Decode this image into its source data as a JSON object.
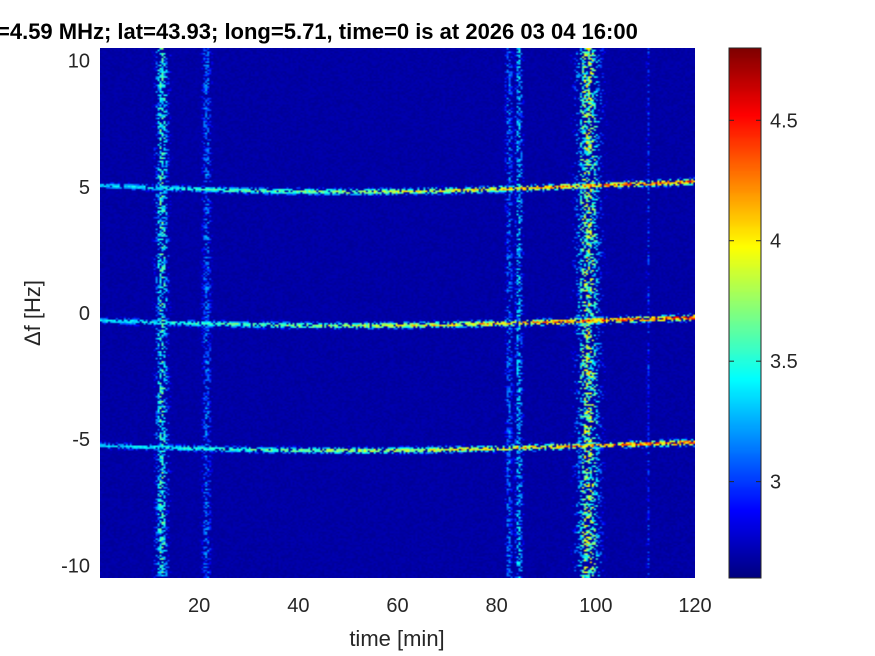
{
  "chart_data": {
    "type": "heatmap",
    "title": "=4.59 MHz;  lat=43.93; long=5.71, time=0 is at 2026 03 04 16:00",
    "xlabel": "time [min]",
    "ylabel": "Δf [Hz]",
    "xlim": [
      0,
      120
    ],
    "ylim": [
      -10.5,
      10.5
    ],
    "x_ticks": [
      "20",
      "40",
      "60",
      "80",
      "100",
      "120"
    ],
    "y_ticks": [
      "10",
      "5",
      "0",
      "-5",
      "-10"
    ],
    "colorbar": {
      "colormap": "jet",
      "range": [
        2.6,
        4.8
      ],
      "ticks": [
        "4.5",
        "4",
        "3.5",
        "3"
      ]
    },
    "background_level": 2.65,
    "horizontal_lines": [
      {
        "df_hz": 5.05,
        "from_min": 0,
        "to_min": 120,
        "peak_level": 4.6,
        "note_drift_hz": -0.25
      },
      {
        "df_hz": -0.3,
        "from_min": 0,
        "to_min": 120,
        "peak_level": 4.7,
        "note_drift_hz": -0.2
      },
      {
        "df_hz": -5.25,
        "from_min": 0,
        "to_min": 120,
        "peak_level": 4.6,
        "note_drift_hz": -0.2
      }
    ],
    "vertical_bands": [
      {
        "time_min": 12.5,
        "width_min": 2.5,
        "level": 3.6
      },
      {
        "time_min": 21.5,
        "width_min": 1.8,
        "level": 3.2
      },
      {
        "time_min": 82.5,
        "width_min": 1.5,
        "level": 3.2
      },
      {
        "time_min": 84.5,
        "width_min": 1.5,
        "level": 3.4
      },
      {
        "time_min": 98.5,
        "width_min": 4.5,
        "level": 3.9
      },
      {
        "time_min": 110.5,
        "width_min": 0.5,
        "level": 3.1
      }
    ]
  }
}
